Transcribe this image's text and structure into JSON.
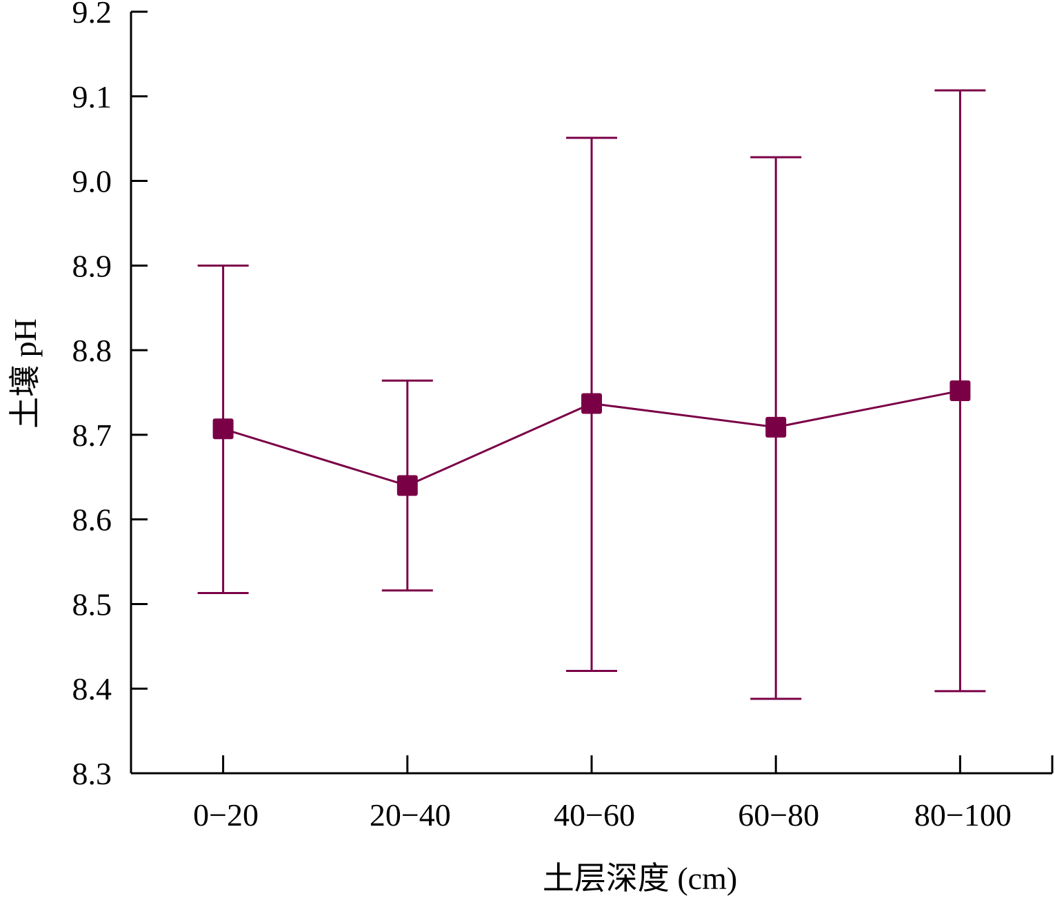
{
  "chart_data": {
    "type": "line",
    "title": "",
    "xlabel": "土层深度 (cm)",
    "ylabel": "土壤 pH",
    "categories": [
      "0−20",
      "20−40",
      "40−60",
      "60−80",
      "80−100"
    ],
    "series": [
      {
        "values": [
          8.707,
          8.64,
          8.737,
          8.709,
          8.752
        ],
        "error_upper": [
          8.9,
          8.764,
          9.051,
          9.028,
          9.107
        ],
        "error_lower": [
          8.513,
          8.516,
          8.421,
          8.388,
          8.397
        ],
        "marker": "square",
        "color": "#7A0046"
      }
    ],
    "ylim": [
      8.3,
      9.2
    ],
    "yticks": [
      "8.3",
      "8.4",
      "8.5",
      "8.6",
      "8.7",
      "8.8",
      "8.9",
      "9.0",
      "9.1",
      "9.2"
    ],
    "grid": false,
    "legend": "none"
  }
}
